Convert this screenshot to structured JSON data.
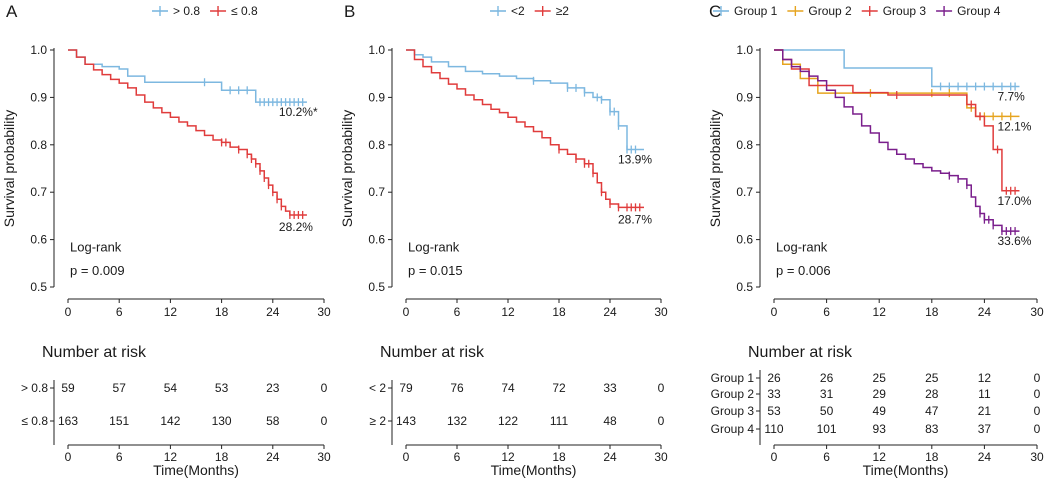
{
  "colors": {
    "blue": "#7db8e0",
    "red": "#e03c3c",
    "orange": "#e6a41f",
    "purple": "#7a1e8c",
    "annot": "#555555"
  },
  "chart_data": [
    {
      "type": "line",
      "panel_label": "A",
      "ylabel": "Survival probability",
      "xlabel": "Time(Months)",
      "xlim": [
        0,
        30
      ],
      "ylim": [
        0.5,
        1.0
      ],
      "xticks": [
        0,
        6,
        12,
        18,
        24,
        30
      ],
      "yticks": [
        0.5,
        0.6,
        0.7,
        0.8,
        0.9,
        1.0
      ],
      "legend": "top",
      "test_label": "Log-rank",
      "p_value": "p = 0.009",
      "risk_title": "Number at risk",
      "series": [
        {
          "name": "> 0.8",
          "color": "#7db8e0",
          "end_label": "10.2%*",
          "x": [
            0,
            1,
            2,
            4,
            6,
            7,
            9,
            18,
            22,
            28
          ],
          "y": [
            1.0,
            0.985,
            0.97,
            0.965,
            0.96,
            0.945,
            0.932,
            0.915,
            0.89,
            0.89
          ],
          "censor_x": [
            16,
            19,
            20,
            21,
            22.5,
            23,
            23.5,
            24,
            24.5,
            25,
            25.5,
            26,
            26.5,
            27,
            27.5
          ]
        },
        {
          "name": "≤ 0.8",
          "color": "#e03c3c",
          "end_label": "28.2%",
          "x": [
            0,
            1,
            2,
            3,
            4,
            5,
            6,
            7,
            8,
            9,
            10,
            11,
            12,
            13,
            14,
            15,
            16,
            17,
            18,
            19,
            20,
            21,
            21.5,
            22,
            22.5,
            23,
            23.5,
            24,
            24.5,
            25,
            25.5,
            26,
            28
          ],
          "y": [
            1.0,
            0.985,
            0.97,
            0.958,
            0.948,
            0.938,
            0.93,
            0.92,
            0.905,
            0.89,
            0.878,
            0.868,
            0.858,
            0.848,
            0.84,
            0.83,
            0.82,
            0.81,
            0.805,
            0.795,
            0.79,
            0.78,
            0.77,
            0.76,
            0.745,
            0.73,
            0.715,
            0.7,
            0.685,
            0.67,
            0.66,
            0.652,
            0.652
          ],
          "censor_x": [
            18,
            18.5,
            20,
            21,
            21.5,
            22,
            22.5,
            23,
            23.5,
            24,
            24.5,
            25,
            26,
            26.5,
            27,
            27.5
          ]
        }
      ],
      "risk_table": [
        {
          "label": "> 0.8",
          "color": "#7db8e0",
          "values": [
            "59",
            "57",
            "54",
            "53",
            "23",
            "0"
          ]
        },
        {
          "label": "≤ 0.8",
          "color": "#e03c3c",
          "values": [
            "163",
            "151",
            "142",
            "130",
            "58",
            "0"
          ]
        }
      ]
    },
    {
      "type": "line",
      "panel_label": "B",
      "ylabel": "Survival probability",
      "xlabel": "Time(Months)",
      "xlim": [
        0,
        30
      ],
      "ylim": [
        0.5,
        1.0
      ],
      "xticks": [
        0,
        6,
        12,
        18,
        24,
        30
      ],
      "yticks": [
        0.5,
        0.6,
        0.7,
        0.8,
        0.9,
        1.0
      ],
      "legend": "top",
      "test_label": "Log-rank",
      "p_value": "p = 0.015",
      "risk_title": "Number at risk",
      "series": [
        {
          "name": "<2",
          "color": "#7db8e0",
          "end_label": "13.9%",
          "x": [
            0,
            1,
            2,
            3,
            5,
            7,
            9,
            11,
            13,
            15,
            17,
            19,
            21,
            22,
            23,
            24,
            25,
            26,
            28
          ],
          "y": [
            1.0,
            0.99,
            0.985,
            0.975,
            0.965,
            0.955,
            0.95,
            0.945,
            0.94,
            0.935,
            0.93,
            0.92,
            0.91,
            0.9,
            0.895,
            0.87,
            0.84,
            0.79,
            0.79
          ],
          "censor_x": [
            15,
            19,
            20,
            21,
            22.5,
            23,
            24,
            24.5,
            25,
            26,
            26.5,
            27
          ]
        },
        {
          "name": "≥2",
          "color": "#e03c3c",
          "end_label": "28.7%",
          "x": [
            0,
            1,
            2,
            3,
            4,
            5,
            6,
            7,
            8,
            9,
            10,
            11,
            12,
            13,
            14,
            15,
            16,
            17,
            18,
            19,
            20,
            21,
            22,
            22.5,
            23,
            23.5,
            24,
            25,
            26,
            28
          ],
          "y": [
            1.0,
            0.98,
            0.965,
            0.952,
            0.94,
            0.928,
            0.918,
            0.905,
            0.895,
            0.885,
            0.875,
            0.868,
            0.858,
            0.848,
            0.838,
            0.828,
            0.815,
            0.8,
            0.79,
            0.78,
            0.77,
            0.76,
            0.74,
            0.72,
            0.7,
            0.685,
            0.675,
            0.668,
            0.668,
            0.668
          ],
          "censor_x": [
            18,
            20,
            21,
            21.5,
            22,
            23,
            24,
            25,
            26,
            26.5,
            27,
            27.5
          ]
        }
      ],
      "risk_table": [
        {
          "label": "< 2",
          "color": "#7db8e0",
          "values": [
            "79",
            "76",
            "74",
            "72",
            "33",
            "0"
          ]
        },
        {
          "label": "≥ 2",
          "color": "#e03c3c",
          "values": [
            "143",
            "132",
            "122",
            "111",
            "48",
            "0"
          ]
        }
      ]
    },
    {
      "type": "line",
      "panel_label": "C",
      "ylabel": "Survival probability",
      "xlabel": "Time(Months)",
      "xlim": [
        0,
        30
      ],
      "ylim": [
        0.5,
        1.0
      ],
      "xticks": [
        0,
        6,
        12,
        18,
        24,
        30
      ],
      "yticks": [
        0.5,
        0.6,
        0.7,
        0.8,
        0.9,
        1.0
      ],
      "legend": "top",
      "test_label": "Log-rank",
      "p_value": "p = 0.006",
      "risk_title": "Number at risk",
      "series": [
        {
          "name": "Group 1",
          "color": "#7db8e0",
          "end_label": "7.7%",
          "x": [
            0,
            8,
            18,
            28
          ],
          "y": [
            1.0,
            0.962,
            0.923,
            0.923
          ],
          "censor_x": [
            19,
            20,
            21,
            22,
            23,
            24,
            25,
            26,
            27,
            27.5
          ]
        },
        {
          "name": "Group 2",
          "color": "#e6a41f",
          "end_label": "12.1%",
          "x": [
            0,
            1,
            3,
            5,
            9,
            17,
            22,
            23,
            28
          ],
          "y": [
            1.0,
            0.97,
            0.94,
            0.909,
            0.909,
            0.909,
            0.878,
            0.86,
            0.86
          ],
          "censor_x": [
            11,
            18,
            20,
            22.5,
            23.5,
            24,
            25,
            26,
            27
          ]
        },
        {
          "name": "Group 3",
          "color": "#e03c3c",
          "end_label": "17.0%",
          "x": [
            0,
            1,
            2,
            4,
            9,
            13,
            22,
            23,
            24,
            25,
            26,
            28
          ],
          "y": [
            1.0,
            0.98,
            0.96,
            0.925,
            0.91,
            0.905,
            0.885,
            0.86,
            0.84,
            0.79,
            0.703,
            0.703
          ],
          "censor_x": [
            14,
            22.5,
            23.5,
            25.5,
            26.5,
            27,
            27.5
          ]
        },
        {
          "name": "Group 4",
          "color": "#7a1e8c",
          "end_label": "33.6%",
          "x": [
            0,
            1,
            2,
            3,
            4,
            5,
            6,
            7,
            8,
            9,
            10,
            11,
            12,
            13,
            14,
            15,
            16,
            17,
            18,
            19,
            20,
            21,
            22,
            22.5,
            23,
            23.5,
            24,
            25,
            26,
            28
          ],
          "y": [
            1.0,
            0.98,
            0.965,
            0.955,
            0.945,
            0.935,
            0.915,
            0.9,
            0.88,
            0.865,
            0.84,
            0.825,
            0.805,
            0.79,
            0.78,
            0.77,
            0.76,
            0.752,
            0.745,
            0.74,
            0.735,
            0.728,
            0.715,
            0.69,
            0.67,
            0.655,
            0.642,
            0.63,
            0.618,
            0.618
          ],
          "censor_x": [
            20,
            21,
            22,
            23.5,
            24,
            24.5,
            25,
            26,
            26.5,
            27,
            27.5
          ]
        }
      ],
      "risk_table": [
        {
          "label": "Group 1",
          "color": "#7db8e0",
          "values": [
            "26",
            "26",
            "25",
            "25",
            "12",
            "0"
          ]
        },
        {
          "label": "Group 2",
          "color": "#e6a41f",
          "values": [
            "33",
            "31",
            "29",
            "28",
            "11",
            "0"
          ]
        },
        {
          "label": "Group 3",
          "color": "#e03c3c",
          "values": [
            "53",
            "50",
            "49",
            "47",
            "21",
            "0"
          ]
        },
        {
          "label": "Group 4",
          "color": "#7a1e8c",
          "values": [
            "110",
            "101",
            "93",
            "83",
            "37",
            "0"
          ]
        }
      ]
    }
  ]
}
